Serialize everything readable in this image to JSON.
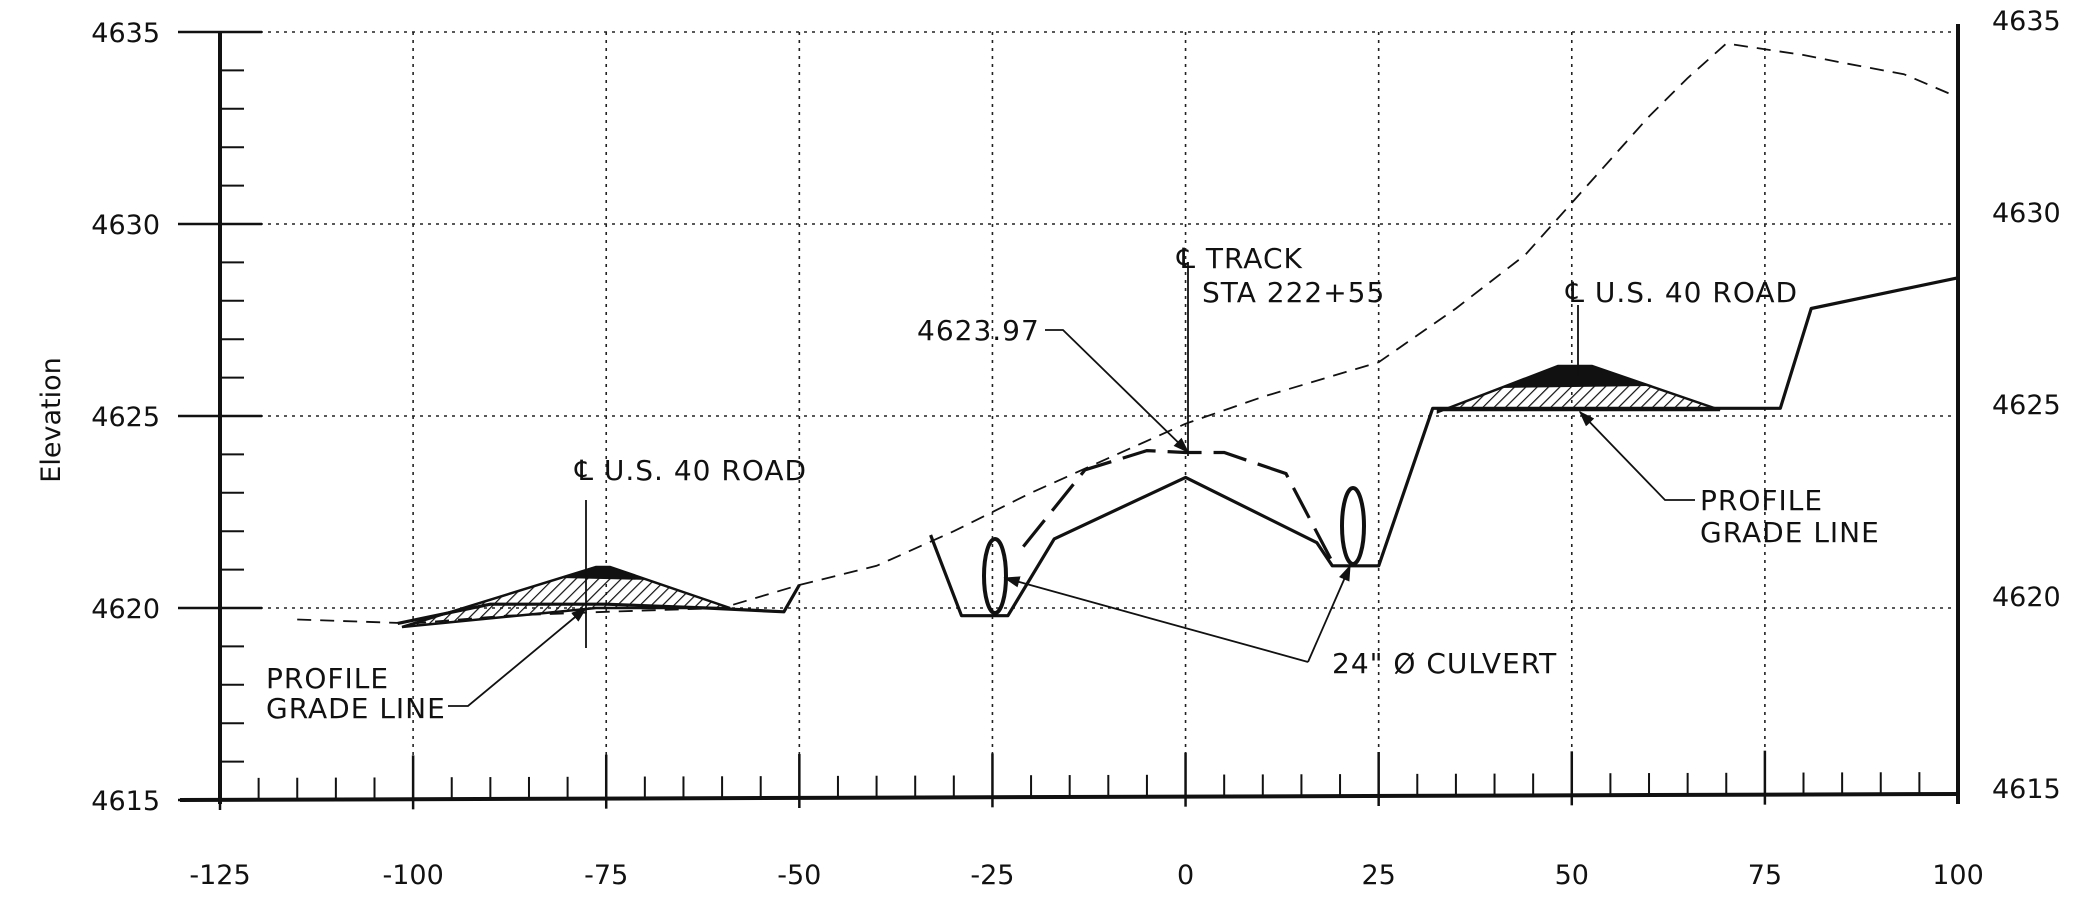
{
  "chart_data": {
    "type": "line",
    "title": "",
    "ylabel": "Elevation",
    "xlabel": "",
    "xlim": [
      -125,
      100
    ],
    "ylim": [
      4615,
      4635
    ],
    "x_ticks": [
      "-125",
      "-100",
      "-75",
      "-50",
      "-25",
      "0",
      "25",
      "50",
      "75",
      "100"
    ],
    "y_ticks_left": [
      "4615",
      "4620",
      "4625",
      "4630",
      "4635"
    ],
    "y_ticks_right": [
      "4615",
      "4620",
      "4625",
      "4630",
      "4635"
    ],
    "grid": true,
    "series": [
      {
        "style": "dashed-thin",
        "points": [
          [
            -115,
            4619.7
          ],
          [
            -100,
            4619.6
          ],
          [
            -88,
            4619.8
          ],
          [
            -75,
            4619.9
          ],
          [
            -60,
            4620.0
          ],
          [
            -50,
            4620.6
          ],
          [
            -40,
            4621.1
          ],
          [
            -30,
            4622.0
          ],
          [
            -20,
            4623.0
          ],
          [
            -10,
            4623.9
          ],
          [
            0,
            4624.8
          ],
          [
            10,
            4625.5
          ],
          [
            25,
            4626.4
          ],
          [
            35,
            4627.8
          ],
          [
            44,
            4629.2
          ],
          [
            52,
            4631.0
          ],
          [
            60,
            4632.8
          ],
          [
            65,
            4633.8
          ],
          [
            70,
            4634.7
          ],
          [
            80,
            4634.4
          ],
          [
            85,
            4634.2
          ],
          [
            93,
            4633.9
          ],
          [
            100,
            4633.3
          ]
        ]
      },
      {
        "style": "solid",
        "points": [
          [
            -102,
            4619.6
          ],
          [
            -90,
            4620.1
          ],
          [
            -75,
            4620.1
          ],
          [
            -62,
            4620.0
          ],
          [
            -52,
            4619.9
          ],
          [
            -50,
            4620.6
          ]
        ]
      },
      {
        "style": "solid",
        "points": [
          [
            -33,
            4621.9
          ],
          [
            -29,
            4619.8
          ],
          [
            -23,
            4619.8
          ],
          [
            -17,
            4621.8
          ],
          [
            0,
            4623.4
          ],
          [
            17,
            4621.7
          ],
          [
            19,
            4621.1
          ],
          [
            25,
            4621.1
          ],
          [
            32,
            4625.2
          ],
          [
            77,
            4625.2
          ],
          [
            81,
            4627.8
          ],
          [
            100,
            4628.6
          ]
        ]
      },
      {
        "style": "dashed-thick",
        "points": [
          [
            -21,
            4621.6
          ],
          [
            -13,
            4623.6
          ],
          [
            -5,
            4624.1
          ],
          [
            0,
            4624.05
          ],
          [
            5,
            4624.05
          ],
          [
            13,
            4623.5
          ],
          [
            19,
            4621.2
          ]
        ]
      }
    ]
  },
  "annotations": {
    "track_cl": "℄ TRACK",
    "track_sta": "STA 222+55",
    "track_elev": "4623.97",
    "road_left": "℄ U.S. 40 ROAD",
    "road_right": "℄ U.S. 40 ROAD",
    "profile_left_1": "PROFILE",
    "profile_left_2": "GRADE LINE",
    "profile_right_1": "PROFILE",
    "profile_right_2": "GRADE LINE",
    "culvert": "24\" Ø CULVERT"
  }
}
